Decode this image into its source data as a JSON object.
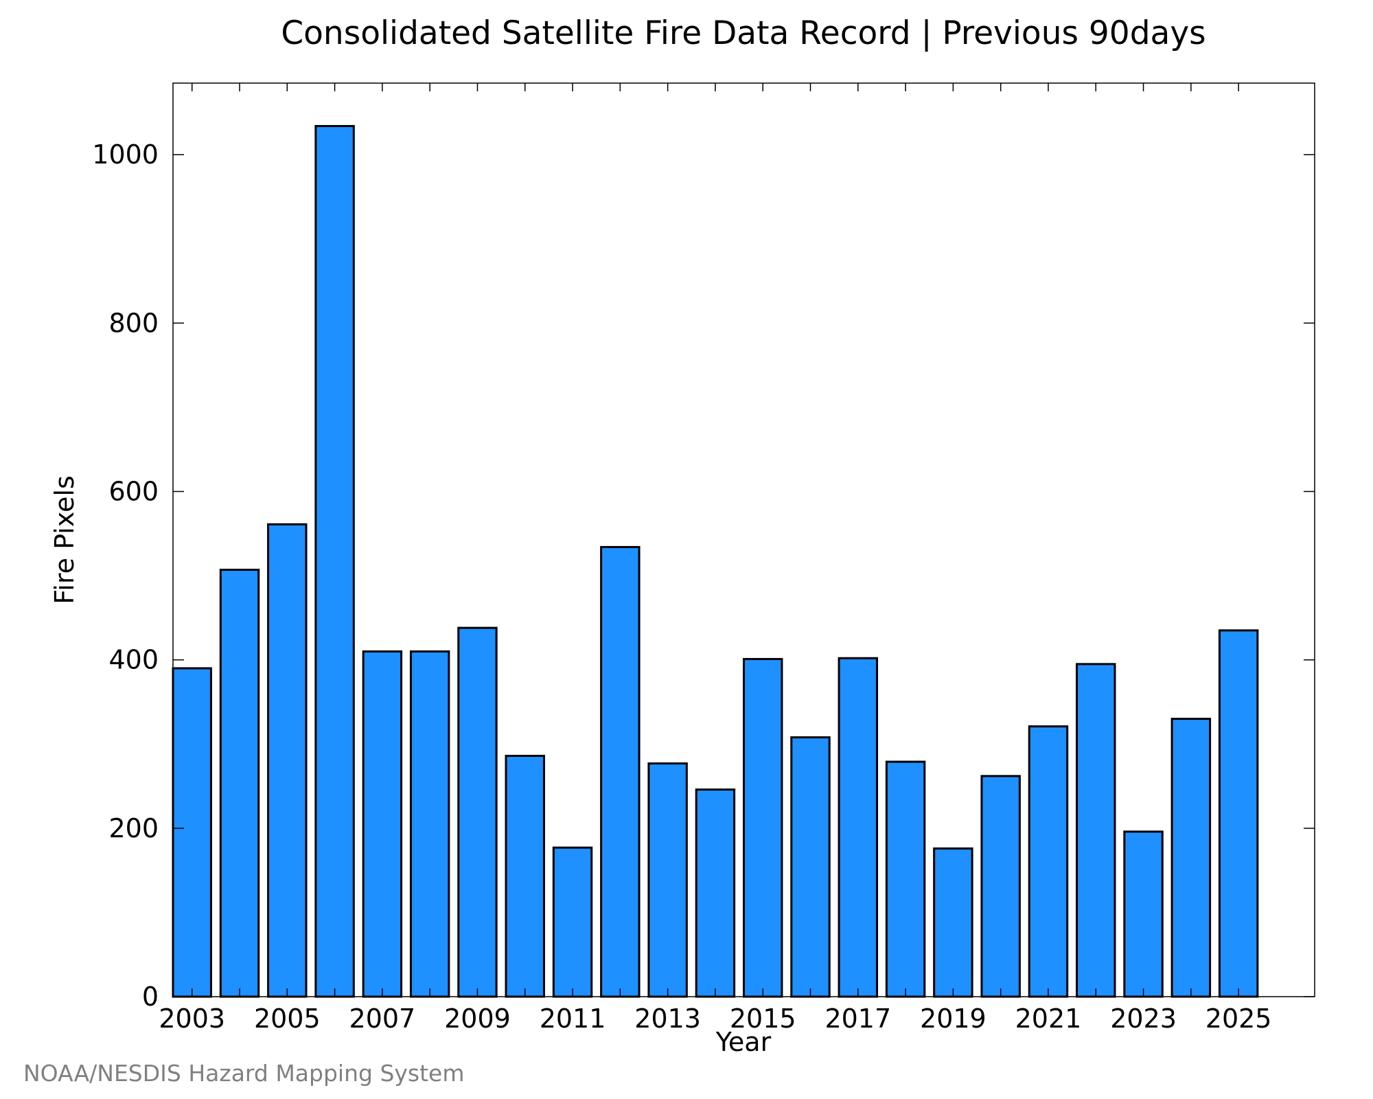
{
  "chart_data": {
    "type": "bar",
    "title": "Consolidated Satellite Fire Data Record | Previous 90days",
    "xlabel": "Year",
    "ylabel": "Fire Pixels",
    "categories": [
      2003,
      2004,
      2005,
      2006,
      2007,
      2008,
      2009,
      2010,
      2011,
      2012,
      2013,
      2014,
      2015,
      2016,
      2017,
      2018,
      2019,
      2020,
      2021,
      2022,
      2023,
      2024,
      2025
    ],
    "x_tick_labels": [
      "2003",
      "2005",
      "2007",
      "2009",
      "2011",
      "2013",
      "2015",
      "2017",
      "2019",
      "2021",
      "2023",
      "2025"
    ],
    "y_tick_labels": [
      "0",
      "200",
      "400",
      "600",
      "800",
      "1000"
    ],
    "values": [
      390,
      507,
      561,
      1034,
      410,
      410,
      438,
      286,
      177,
      534,
      277,
      246,
      401,
      308,
      402,
      279,
      176,
      262,
      321,
      395,
      196,
      330,
      435
    ],
    "xlim": [
      2002.6,
      2026.6
    ],
    "ylim": [
      0,
      1085
    ],
    "grid": false,
    "legend": "none",
    "bar_color": "#1e90ff",
    "bar_edge_color": "#000000"
  },
  "footer": {
    "credit": "NOAA/NESDIS Hazard Mapping System"
  }
}
